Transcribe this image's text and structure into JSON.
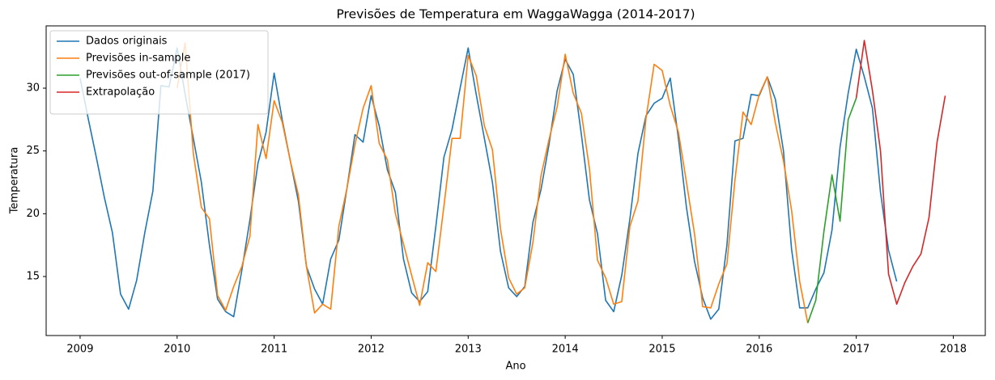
{
  "chart_data": {
    "type": "line",
    "title": "Previsões de Temperatura em WaggaWagga (2014-2017)",
    "xlabel": "Ano",
    "ylabel": "Temperatura",
    "xlim": [
      2008.65,
      2018.33
    ],
    "ylim": [
      10.3,
      34.96
    ],
    "xticks": [
      2009,
      2010,
      2011,
      2012,
      2013,
      2014,
      2015,
      2016,
      2017,
      2018
    ],
    "yticks": [
      15,
      20,
      25,
      30
    ],
    "legend": "upper left",
    "grid": false,
    "series": [
      {
        "name": "Dados originais",
        "color": "#1f77b4",
        "x": [
          2009,
          2009.083,
          2009.167,
          2009.25,
          2009.333,
          2009.417,
          2009.5,
          2009.583,
          2009.667,
          2009.75,
          2009.833,
          2009.917,
          2010,
          2010.083,
          2010.167,
          2010.25,
          2010.333,
          2010.417,
          2010.5,
          2010.583,
          2010.667,
          2010.75,
          2010.833,
          2010.917,
          2011,
          2011.083,
          2011.167,
          2011.25,
          2011.333,
          2011.417,
          2011.5,
          2011.583,
          2011.667,
          2011.75,
          2011.833,
          2011.917,
          2012,
          2012.083,
          2012.167,
          2012.25,
          2012.333,
          2012.417,
          2012.5,
          2012.583,
          2012.667,
          2012.75,
          2012.833,
          2012.917,
          2013,
          2013.083,
          2013.167,
          2013.25,
          2013.333,
          2013.417,
          2013.5,
          2013.583,
          2013.667,
          2013.75,
          2013.833,
          2013.917,
          2014,
          2014.083,
          2014.167,
          2014.25,
          2014.333,
          2014.417,
          2014.5,
          2014.583,
          2014.667,
          2014.75,
          2014.833,
          2014.917,
          2015,
          2015.083,
          2015.167,
          2015.25,
          2015.333,
          2015.417,
          2015.5,
          2015.583,
          2015.667,
          2015.75,
          2015.833,
          2015.917,
          2016,
          2016.083,
          2016.167,
          2016.25,
          2016.333,
          2016.417,
          2016.5,
          2016.583,
          2016.667,
          2016.75,
          2016.833,
          2016.917,
          2017,
          2017.083,
          2017.167,
          2017.25,
          2017.333,
          2017.417
        ],
        "values": [
          30.8,
          27.6,
          24.5,
          21.3,
          18.5,
          13.6,
          12.4,
          14.7,
          18.5,
          21.8,
          30.2,
          30.1,
          33.2,
          29.5,
          26,
          22.5,
          17.5,
          13.2,
          12.2,
          11.8,
          15.5,
          19.5,
          24,
          26.5,
          31.2,
          27.5,
          24.2,
          21,
          15.8,
          14,
          12.8,
          16.4,
          17.9,
          22,
          26.3,
          25.7,
          29.4,
          27,
          23.5,
          21.7,
          16.4,
          13.7,
          13,
          13.8,
          19,
          24.5,
          26.7,
          30,
          33.2,
          29.5,
          26,
          22.5,
          17,
          14.1,
          13.4,
          14.2,
          19.3,
          21.9,
          25.5,
          29.8,
          32.3,
          31.1,
          26.3,
          21.1,
          18.4,
          13.1,
          12.2,
          15.1,
          19.6,
          24.8,
          27.8,
          28.8,
          29.2,
          30.8,
          26,
          20.5,
          16.2,
          13.3,
          11.6,
          12.4,
          17.5,
          25.8,
          26,
          29.5,
          29.4,
          30.9,
          29.1,
          25,
          17.2,
          12.5,
          12.5,
          14,
          15.3,
          18.7,
          25.3,
          29.6,
          33.1,
          30.9,
          28.4,
          21.7,
          17.1,
          14.6
        ]
      },
      {
        "name": "Previsões in-sample",
        "color": "#ff7f0e",
        "x": [
          2010,
          2010.083,
          2010.167,
          2010.25,
          2010.333,
          2010.417,
          2010.5,
          2010.583,
          2010.667,
          2010.75,
          2010.833,
          2010.917,
          2011,
          2011.083,
          2011.167,
          2011.25,
          2011.333,
          2011.417,
          2011.5,
          2011.583,
          2011.667,
          2011.75,
          2011.833,
          2011.917,
          2012,
          2012.083,
          2012.167,
          2012.25,
          2012.333,
          2012.417,
          2012.5,
          2012.583,
          2012.667,
          2012.75,
          2012.833,
          2012.917,
          2013,
          2013.083,
          2013.167,
          2013.25,
          2013.333,
          2013.417,
          2013.5,
          2013.583,
          2013.667,
          2013.75,
          2013.833,
          2013.917,
          2014,
          2014.083,
          2014.167,
          2014.25,
          2014.333,
          2014.417,
          2014.5,
          2014.583,
          2014.667,
          2014.75,
          2014.833,
          2014.917,
          2015,
          2015.083,
          2015.167,
          2015.25,
          2015.333,
          2015.417,
          2015.5,
          2015.583,
          2015.667,
          2015.75,
          2015.833,
          2015.917,
          2016,
          2016.083,
          2016.167,
          2016.25,
          2016.333,
          2016.417,
          2016.5
        ],
        "values": [
          30,
          33.6,
          24.8,
          20.5,
          19.6,
          13.5,
          12.3,
          14.2,
          15.8,
          18.2,
          27.1,
          24.4,
          29,
          27.3,
          24.2,
          21.5,
          15.8,
          12.1,
          12.8,
          12.4,
          19,
          22,
          25.5,
          28.4,
          30.2,
          25.6,
          24.3,
          20,
          17.6,
          15.1,
          12.7,
          16.1,
          15.4,
          20.6,
          26,
          26,
          32.6,
          31,
          27,
          25.1,
          18.8,
          14.9,
          13.6,
          14.1,
          17.7,
          23,
          25.9,
          28.5,
          32.7,
          29.6,
          28,
          23.6,
          16.3,
          14.9,
          12.8,
          13,
          19,
          21,
          27.6,
          31.9,
          31.4,
          28.6,
          26.5,
          22.5,
          18.4,
          12.6,
          12.5,
          14.4,
          16,
          22.7,
          28.1,
          27.1,
          29.5,
          30.9,
          27.2,
          24.2,
          20.3,
          14.6,
          11.3
        ]
      },
      {
        "name": "Previsões out-of-sample (2017)",
        "color": "#2ca02c",
        "x": [
          2016.5,
          2016.583,
          2016.667,
          2016.75,
          2016.833,
          2016.917,
          2017
        ],
        "values": [
          11.3,
          13.1,
          18.6,
          23.1,
          19.4,
          27.5,
          29.2
        ]
      },
      {
        "name": "Extrapolação",
        "color": "#d62728",
        "x": [
          2017,
          2017.083,
          2017.167,
          2017.25,
          2017.333,
          2017.417,
          2017.5,
          2017.583,
          2017.667,
          2017.75,
          2017.833,
          2017.917
        ],
        "values": [
          29.2,
          33.8,
          29.8,
          25,
          15.2,
          12.8,
          14.5,
          15.8,
          16.8,
          19.7,
          25.7,
          29.4
        ]
      }
    ]
  }
}
